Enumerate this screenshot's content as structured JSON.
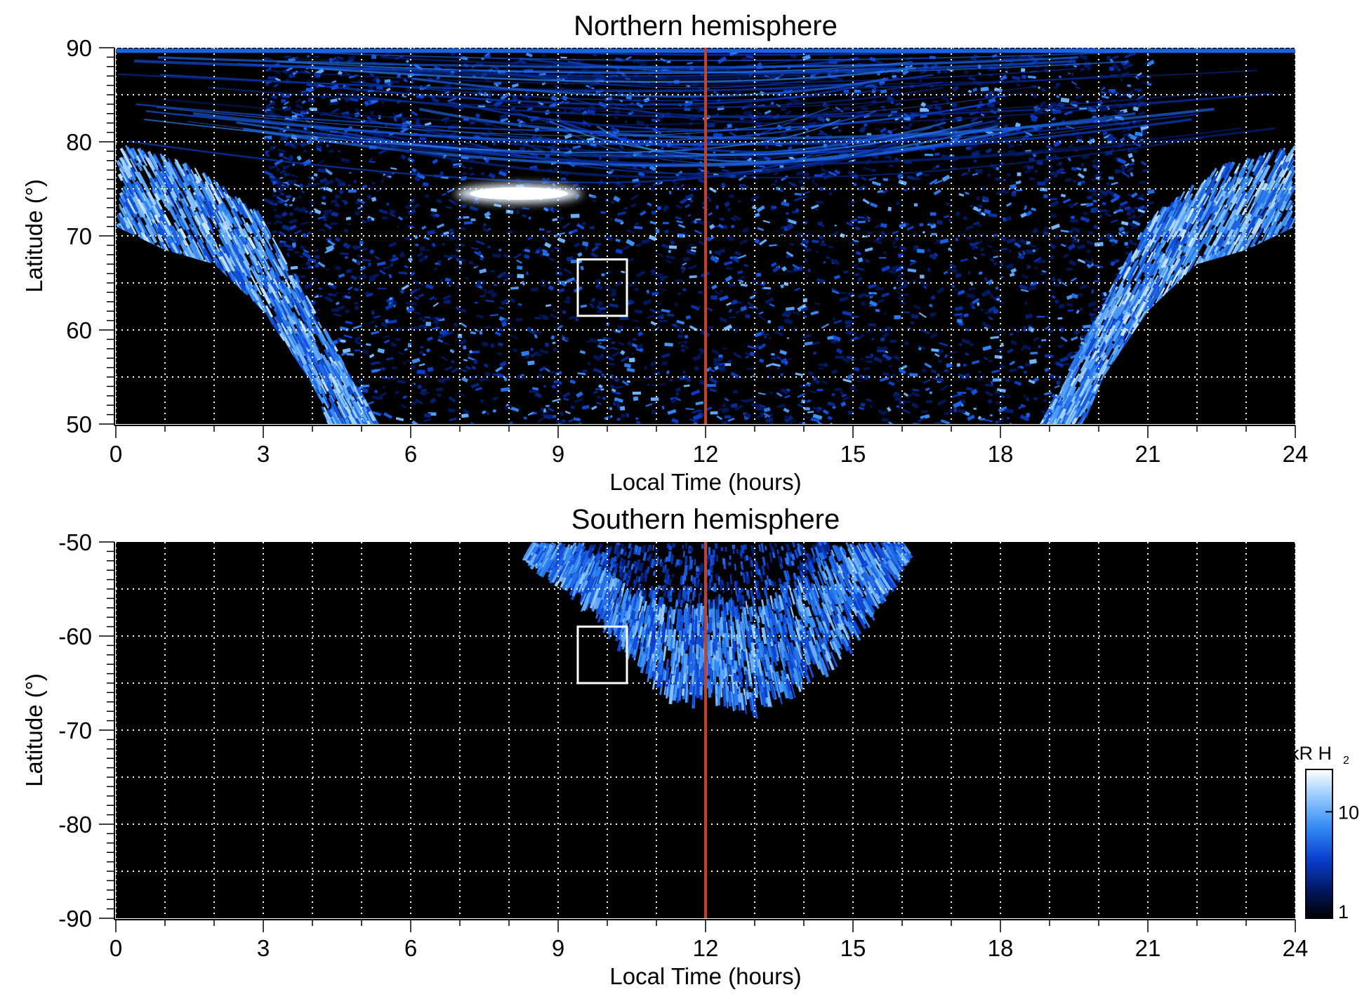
{
  "colors": {
    "background": "#000000",
    "noon_line": "#c84022",
    "grid": "#ffffff",
    "box": "#ffffff",
    "colormap": [
      "#000000",
      "#001a66",
      "#0a3fd0",
      "#2f86f3",
      "#8cc6ff",
      "#ffffff"
    ]
  },
  "chart_data": [
    {
      "type": "heatmap",
      "title": "Northern hemisphere",
      "xlabel": "Local Time (hours)",
      "ylabel": "Latitude (°)",
      "xlim": [
        0,
        24
      ],
      "ylim": [
        50,
        90
      ],
      "xticks": [
        0,
        3,
        6,
        9,
        12,
        15,
        18,
        21,
        24
      ],
      "yticks": [
        90,
        80,
        70,
        60,
        50
      ],
      "x_gridlines": [
        0,
        1,
        2,
        3,
        4,
        5,
        6,
        7,
        8,
        9,
        10,
        11,
        12,
        13,
        14,
        15,
        16,
        17,
        18,
        19,
        20,
        21,
        22,
        23,
        24
      ],
      "y_gridlines": [
        55,
        60,
        65,
        70,
        75,
        80,
        85,
        90
      ],
      "grid": true,
      "grid_style": "dotted",
      "noon_line_x": 12,
      "box": {
        "x": [
          9.4,
          10.4
        ],
        "y": [
          61.5,
          67.5
        ]
      },
      "auroral_oval": {
        "dawn_inner": [
          [
            0,
            80
          ],
          [
            1.5,
            77.8
          ],
          [
            3,
            72
          ],
          [
            4,
            62
          ],
          [
            5.3,
            50
          ]
        ],
        "dawn_outer": [
          [
            0,
            71
          ],
          [
            1,
            68.5
          ],
          [
            2,
            67
          ],
          [
            3,
            62
          ],
          [
            3.9,
            55
          ],
          [
            4.3,
            50
          ]
        ],
        "dusk_inner": [
          [
            18.8,
            50
          ],
          [
            20,
            62
          ],
          [
            21,
            72
          ],
          [
            22.5,
            77.8
          ],
          [
            24,
            80
          ]
        ],
        "dusk_outer": [
          [
            19.7,
            50
          ],
          [
            20.1,
            55
          ],
          [
            21,
            62
          ],
          [
            22,
            67
          ],
          [
            23,
            68.5
          ],
          [
            24,
            71
          ]
        ],
        "bright_spot": {
          "x": 8.2,
          "y": 74.5
        }
      }
    },
    {
      "type": "heatmap",
      "title": "Southern hemisphere",
      "xlabel": "Local Time (hours)",
      "ylabel": "Latitude (°)",
      "xlim": [
        0,
        24
      ],
      "ylim": [
        -90,
        -50
      ],
      "xticks": [
        0,
        3,
        6,
        9,
        12,
        15,
        18,
        21,
        24
      ],
      "yticks": [
        -50,
        -60,
        -70,
        -80,
        -90
      ],
      "x_gridlines": [
        0,
        1,
        2,
        3,
        4,
        5,
        6,
        7,
        8,
        9,
        10,
        11,
        12,
        13,
        14,
        15,
        16,
        17,
        18,
        19,
        20,
        21,
        22,
        23,
        24
      ],
      "y_gridlines": [
        -55,
        -60,
        -65,
        -70,
        -75,
        -80,
        -85
      ],
      "grid": true,
      "grid_style": "dotted",
      "noon_line_x": 12,
      "box": {
        "x": [
          9.4,
          10.4
        ],
        "y": [
          -65,
          -59
        ]
      },
      "auroral_oval": {
        "outer": [
          [
            8.4,
            -50
          ],
          [
            9.5,
            -55
          ],
          [
            10.5,
            -61
          ],
          [
            11.2,
            -65.5
          ],
          [
            11.6,
            -66
          ],
          [
            12,
            -65
          ],
          [
            12.4,
            -66
          ],
          [
            13,
            -67
          ],
          [
            13.7,
            -65
          ],
          [
            14.5,
            -62
          ],
          [
            15.2,
            -57
          ],
          [
            15.8,
            -52
          ],
          [
            16,
            -50
          ]
        ],
        "inner": [
          [
            9.5,
            -50
          ],
          [
            10,
            -53
          ],
          [
            10.8,
            -55.5
          ],
          [
            12,
            -56.5
          ],
          [
            13.2,
            -55.5
          ],
          [
            14,
            -53
          ],
          [
            14.6,
            -50
          ]
        ]
      }
    }
  ],
  "colorbar": {
    "label_main": "kR H",
    "label_sub": "2",
    "scale": "log",
    "range": [
      1,
      25
    ],
    "ticks": [
      "10",
      "1"
    ]
  }
}
